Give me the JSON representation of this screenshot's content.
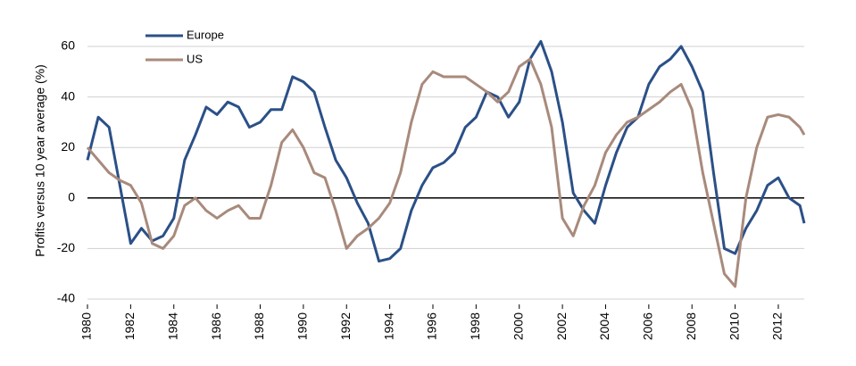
{
  "chart_data": {
    "type": "line",
    "y_label": "Profits versus 10 year average (%)",
    "x": [
      1980,
      1980.5,
      1981,
      1981.5,
      1982,
      1982.5,
      1983,
      1983.5,
      1984,
      1984.5,
      1985,
      1985.5,
      1986,
      1986.5,
      1987,
      1987.5,
      1988,
      1988.5,
      1989,
      1989.5,
      1990,
      1990.5,
      1991,
      1991.5,
      1992,
      1992.5,
      1993,
      1993.5,
      1994,
      1994.5,
      1995,
      1995.5,
      1996,
      1996.5,
      1997,
      1997.5,
      1998,
      1998.5,
      1999,
      1999.5,
      2000,
      2000.5,
      2001,
      2001.5,
      2002,
      2002.5,
      2003,
      2003.5,
      2004,
      2004.5,
      2005,
      2005.5,
      2006,
      2006.5,
      2007,
      2007.5,
      2008,
      2008.5,
      2009,
      2009.5,
      2010,
      2010.5,
      2011,
      2011.5,
      2012,
      2012.5,
      2013,
      2013.2
    ],
    "series": [
      {
        "name": "Europe",
        "color": "#2b5087",
        "values": [
          15,
          32,
          28,
          5,
          -18,
          -12,
          -17,
          -15,
          -8,
          15,
          25,
          36,
          33,
          38,
          36,
          28,
          30,
          35,
          35,
          48,
          46,
          42,
          28,
          15,
          8,
          -2,
          -10,
          -25,
          -24,
          -20,
          -5,
          5,
          12,
          14,
          18,
          28,
          32,
          42,
          40,
          32,
          38,
          55,
          62,
          50,
          30,
          2,
          -5,
          -10,
          5,
          18,
          28,
          32,
          45,
          52,
          55,
          60,
          52,
          42,
          10,
          -20,
          -22,
          -12,
          -5,
          5,
          8,
          0,
          -3,
          -10
        ]
      },
      {
        "name": "US",
        "color": "#a88a7c",
        "values": [
          20,
          15,
          10,
          7,
          5,
          -2,
          -18,
          -20,
          -15,
          -3,
          0,
          -5,
          -8,
          -5,
          -3,
          -8,
          -8,
          5,
          22,
          27,
          20,
          10,
          8,
          -5,
          -20,
          -15,
          -12,
          -8,
          -2,
          10,
          30,
          45,
          50,
          48,
          48,
          48,
          45,
          42,
          38,
          42,
          52,
          55,
          45,
          28,
          -8,
          -15,
          -3,
          5,
          18,
          25,
          30,
          32,
          35,
          38,
          42,
          45,
          35,
          10,
          -10,
          -30,
          -35,
          0,
          20,
          32,
          33,
          32,
          28,
          25
        ]
      }
    ],
    "xlim": [
      1980,
      2013.2
    ],
    "xticks": [
      1980,
      1982,
      1984,
      1986,
      1988,
      1990,
      1992,
      1994,
      1996,
      1998,
      2000,
      2002,
      2004,
      2006,
      2008,
      2010,
      2012
    ],
    "ylim": [
      -40,
      60
    ],
    "yticks": [
      -40,
      -20,
      0,
      20,
      40,
      60
    ],
    "grid": true,
    "legend": "upper left"
  }
}
